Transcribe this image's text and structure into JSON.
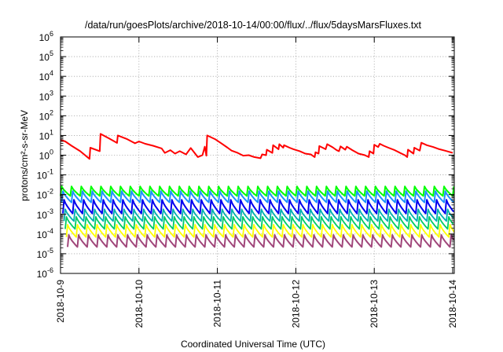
{
  "chart_data": {
    "type": "line",
    "title": "/data/run/goesPlots/archive/2018-10-14/00:00/flux/../flux/5daysMarsFluxes.txt",
    "xlabel": "Coordinated Universal Time (UTC)",
    "ylabel": "protons/cm²-s-sr-MeV",
    "yscale": "log",
    "ylim": [
      1e-06,
      1000000.0
    ],
    "xlim": [
      0,
      5.02
    ],
    "x_unit": "days since 2018-10-09 00:00 UTC",
    "grid": true,
    "legend": "none",
    "x_ticks": [
      {
        "value": 0,
        "label": "2018-10-9"
      },
      {
        "value": 1,
        "label": "2018-10-10"
      },
      {
        "value": 2,
        "label": "2018-10-11"
      },
      {
        "value": 3,
        "label": "2018-10-12"
      },
      {
        "value": 4,
        "label": "2018-10-13"
      },
      {
        "value": 5,
        "label": "2018-10-14"
      }
    ],
    "y_ticks": [
      {
        "value": 1e-06,
        "base": "10",
        "exp": "-6"
      },
      {
        "value": 1e-05,
        "base": "10",
        "exp": "-5"
      },
      {
        "value": 0.0001,
        "base": "10",
        "exp": "-4"
      },
      {
        "value": 0.001,
        "base": "10",
        "exp": "-3"
      },
      {
        "value": 0.01,
        "base": "10",
        "exp": "-2"
      },
      {
        "value": 0.1,
        "base": "10",
        "exp": "-1"
      },
      {
        "value": 1,
        "base": "10",
        "exp": "0"
      },
      {
        "value": 10,
        "base": "10",
        "exp": "1"
      },
      {
        "value": 100,
        "base": "10",
        "exp": "2"
      },
      {
        "value": 1000,
        "base": "10",
        "exp": "3"
      },
      {
        "value": 10000,
        "base": "10",
        "exp": "4"
      },
      {
        "value": 100000,
        "base": "10",
        "exp": "5"
      },
      {
        "value": 1000000,
        "base": "10",
        "exp": "6"
      }
    ],
    "series": [
      {
        "color": "#ff0000",
        "width": 2.0,
        "points": [
          [
            0.0,
            6.0
          ],
          [
            0.06,
            5.0
          ],
          [
            0.14,
            3.0
          ],
          [
            0.25,
            1.6
          ],
          [
            0.37,
            0.65
          ],
          [
            0.38,
            2.4
          ],
          [
            0.5,
            1.6
          ],
          [
            0.51,
            12.0
          ],
          [
            0.62,
            7.0
          ],
          [
            0.72,
            4.2
          ],
          [
            0.73,
            10.0
          ],
          [
            0.85,
            6.5
          ],
          [
            0.95,
            4.0
          ],
          [
            1.0,
            5.0
          ],
          [
            1.08,
            3.8
          ],
          [
            1.18,
            3.0
          ],
          [
            1.29,
            2.2
          ],
          [
            1.33,
            1.3
          ],
          [
            1.4,
            1.8
          ],
          [
            1.46,
            1.2
          ],
          [
            1.52,
            1.6
          ],
          [
            1.6,
            1.1
          ],
          [
            1.66,
            2.3
          ],
          [
            1.75,
            0.8
          ],
          [
            1.81,
            1.0
          ],
          [
            1.84,
            2.7
          ],
          [
            1.86,
            0.95
          ],
          [
            1.87,
            10.0
          ],
          [
            1.97,
            6.5
          ],
          [
            2.05,
            4.0
          ],
          [
            2.13,
            2.4
          ],
          [
            2.18,
            1.7
          ],
          [
            2.26,
            1.3
          ],
          [
            2.33,
            0.95
          ],
          [
            2.4,
            1.0
          ],
          [
            2.47,
            0.8
          ],
          [
            2.55,
            0.7
          ],
          [
            2.57,
            1.1
          ],
          [
            2.62,
            1.0
          ],
          [
            2.63,
            1.9
          ],
          [
            2.7,
            1.3
          ],
          [
            2.71,
            3.2
          ],
          [
            2.78,
            2.0
          ],
          [
            2.79,
            3.6
          ],
          [
            2.84,
            2.4
          ],
          [
            2.85,
            3.2
          ],
          [
            2.92,
            2.4
          ],
          [
            2.97,
            2.0
          ],
          [
            3.05,
            1.6
          ],
          [
            3.12,
            1.2
          ],
          [
            3.19,
            1.1
          ],
          [
            3.24,
            0.8
          ],
          [
            3.25,
            1.4
          ],
          [
            3.29,
            1.2
          ],
          [
            3.3,
            2.9
          ],
          [
            3.38,
            2.0
          ],
          [
            3.4,
            3.6
          ],
          [
            3.47,
            2.5
          ],
          [
            3.52,
            1.8
          ],
          [
            3.55,
            1.6
          ],
          [
            3.57,
            2.8
          ],
          [
            3.63,
            1.9
          ],
          [
            3.65,
            2.7
          ],
          [
            3.72,
            1.8
          ],
          [
            3.8,
            1.2
          ],
          [
            3.88,
            1.0
          ],
          [
            3.93,
            0.8
          ],
          [
            3.94,
            1.6
          ],
          [
            3.99,
            1.2
          ],
          [
            4.0,
            3.4
          ],
          [
            4.05,
            2.6
          ],
          [
            4.07,
            3.8
          ],
          [
            4.12,
            3.0
          ],
          [
            4.18,
            2.4
          ],
          [
            4.26,
            1.8
          ],
          [
            4.33,
            1.3
          ],
          [
            4.39,
            1.0
          ],
          [
            4.42,
            0.8
          ],
          [
            4.43,
            1.9
          ],
          [
            4.5,
            1.2
          ],
          [
            4.51,
            2.4
          ],
          [
            4.58,
            1.7
          ],
          [
            4.6,
            4.3
          ],
          [
            4.67,
            3.2
          ],
          [
            4.75,
            2.6
          ],
          [
            4.83,
            2.0
          ],
          [
            4.9,
            1.7
          ],
          [
            5.0,
            1.3
          ]
        ]
      },
      {
        "color": "#00ff00",
        "width": 2.0,
        "shape": "sawtooth",
        "period": 0.125,
        "offset": 0.0,
        "peak": 0.026,
        "trough": 0.0085
      },
      {
        "color": "#1e90ff",
        "width": 2.0,
        "shape": "sawtooth",
        "period": 0.125,
        "offset": 0.015,
        "peak": 0.015,
        "trough": 0.004
      },
      {
        "color": "#0000ee",
        "width": 2.0,
        "shape": "sawtooth",
        "period": 0.125,
        "offset": 0.03,
        "peak": 0.0055,
        "trough": 0.0011
      },
      {
        "color": "#00b0b0",
        "width": 1.8,
        "shape": "sawtooth",
        "period": 0.125,
        "offset": 0.045,
        "peak": 0.0018,
        "trough": 0.00045
      },
      {
        "color": "#00cc66",
        "width": 1.8,
        "shape": "sawtooth",
        "period": 0.125,
        "offset": 0.06,
        "peak": 0.00075,
        "trough": 0.00018
      },
      {
        "color": "#ffff00",
        "width": 1.8,
        "shape": "sawtooth",
        "period": 0.125,
        "offset": 0.075,
        "peak": 0.0003,
        "trough": 7e-05
      },
      {
        "color": "#a0467a",
        "width": 2.0,
        "shape": "sawtooth",
        "period": 0.125,
        "offset": 0.09,
        "peak": 9e-05,
        "trough": 2.2e-05
      }
    ]
  }
}
